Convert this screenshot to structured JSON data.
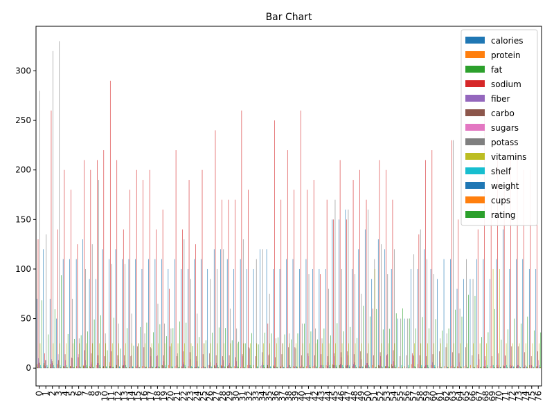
{
  "chart_data": {
    "type": "bar",
    "title": "Bar Chart",
    "xlabel": "",
    "ylabel": "",
    "ylim": [
      -18,
      345
    ],
    "yticks": [
      0,
      50,
      100,
      150,
      200,
      250,
      300
    ],
    "legend_position": "top-right",
    "grid": false,
    "categories": [
      "0",
      "1",
      "2",
      "3",
      "4",
      "5",
      "6",
      "7",
      "8",
      "9",
      "10",
      "11",
      "12",
      "13",
      "14",
      "15",
      "16",
      "17",
      "18",
      "19",
      "20",
      "21",
      "22",
      "23",
      "24",
      "25",
      "26",
      "27",
      "28",
      "29",
      "30",
      "31",
      "32",
      "33",
      "34",
      "35",
      "36",
      "37",
      "38",
      "39",
      "40",
      "41",
      "42",
      "43",
      "44",
      "45",
      "46",
      "47",
      "48",
      "49",
      "50",
      "51",
      "52",
      "53",
      "54",
      "55",
      "56",
      "57",
      "58",
      "59",
      "60",
      "61",
      "62",
      "63",
      "64",
      "65",
      "66",
      "67",
      "68",
      "69",
      "70",
      "71",
      "72",
      "73",
      "74",
      "75",
      "76"
    ],
    "series": [
      {
        "name": "calories",
        "color": "#1f77b4",
        "values": [
          70,
          120,
          70,
          50,
          110,
          110,
          110,
          130,
          90,
          90,
          120,
          110,
          120,
          110,
          110,
          110,
          100,
          110,
          110,
          110,
          100,
          110,
          100,
          100,
          110,
          110,
          100,
          120,
          120,
          110,
          100,
          110,
          100,
          100,
          120,
          120,
          100,
          100,
          110,
          110,
          100,
          110,
          100,
          100,
          100,
          150,
          150,
          160,
          100,
          120,
          140,
          90,
          130,
          120,
          100,
          50,
          50,
          100,
          100,
          120,
          100,
          90,
          110,
          110,
          80,
          90,
          90,
          110,
          110,
          90,
          110,
          140,
          100,
          110,
          110,
          100,
          100
        ]
      },
      {
        "name": "protein",
        "color": "#ff7f0e",
        "values": [
          4,
          3,
          4,
          4,
          2,
          2,
          2,
          3,
          2,
          3,
          1,
          6,
          1,
          3,
          1,
          2,
          2,
          1,
          1,
          3,
          3,
          2,
          2,
          2,
          1,
          1,
          3,
          3,
          3,
          2,
          2,
          1,
          3,
          3,
          2,
          1,
          3,
          2,
          1,
          2,
          2,
          2,
          2,
          1,
          3,
          4,
          3,
          3,
          2,
          2,
          3,
          3,
          3,
          2,
          4,
          1,
          2,
          4,
          4,
          2,
          3,
          2,
          2,
          2,
          2,
          2,
          3,
          3,
          2,
          2,
          3,
          3,
          3,
          2,
          1,
          3,
          2
        ]
      },
      {
        "name": "fat",
        "color": "#2ca02c",
        "values": [
          1,
          5,
          1,
          0,
          2,
          2,
          0,
          2,
          1,
          0,
          2,
          2,
          3,
          2,
          1,
          0,
          0,
          0,
          1,
          3,
          0,
          0,
          1,
          0,
          1,
          0,
          0,
          2,
          2,
          3,
          0,
          0,
          0,
          0,
          0,
          3,
          2,
          1,
          0,
          0,
          1,
          0,
          0,
          0,
          0,
          3,
          3,
          2,
          0,
          1,
          2,
          0,
          2,
          2,
          2,
          0,
          0,
          0,
          0,
          1,
          0,
          0,
          0,
          0,
          1,
          0,
          0,
          0,
          1,
          0,
          1,
          2,
          1,
          1,
          1,
          0,
          1
        ]
      },
      {
        "name": "sodium",
        "color": "#d62728",
        "values": [
          130,
          15,
          260,
          140,
          200,
          180,
          125,
          210,
          200,
          210,
          220,
          290,
          210,
          140,
          180,
          200,
          190,
          200,
          140,
          160,
          80,
          220,
          140,
          190,
          125,
          200,
          0,
          240,
          170,
          170,
          170,
          260,
          180,
          0,
          0,
          45,
          250,
          170,
          220,
          180,
          260,
          180,
          190,
          95,
          170,
          150,
          210,
          150,
          190,
          200,
          170,
          60,
          210,
          200,
          170,
          0,
          0,
          15,
          135,
          210,
          220,
          0,
          0,
          230,
          150,
          0,
          0,
          140,
          260,
          170,
          210,
          180,
          230,
          220,
          200,
          200,
          210
        ]
      },
      {
        "name": "fiber",
        "color": "#9467bd",
        "values": [
          10,
          2,
          9,
          14,
          1,
          1.5,
          1,
          2,
          4,
          5,
          0,
          2,
          0,
          3,
          0,
          1,
          0,
          1,
          2,
          2,
          0,
          0,
          4,
          0,
          1,
          0,
          3,
          1,
          2,
          1,
          1,
          0,
          1,
          0,
          3,
          1,
          1,
          0,
          1,
          1,
          0,
          0,
          0,
          3,
          2,
          3,
          4,
          3,
          4,
          1,
          5,
          0,
          3,
          2,
          2,
          1,
          1,
          0,
          1,
          3,
          6,
          0,
          0,
          0,
          0,
          0,
          0,
          1,
          2,
          0,
          1,
          2,
          2,
          3,
          1,
          0,
          2
        ]
      },
      {
        "name": "carbo",
        "color": "#8c564b",
        "values": [
          5,
          8,
          7,
          8,
          14,
          10.5,
          11,
          18,
          15,
          13,
          12,
          17,
          13,
          13,
          12,
          22,
          21,
          21,
          12,
          13,
          22,
          12,
          17,
          16,
          12,
          14,
          15,
          13,
          12,
          13,
          11,
          14,
          21,
          12,
          16,
          13,
          11,
          14,
          21,
          21,
          13,
          15,
          13,
          14,
          12,
          15,
          16,
          17,
          14,
          17,
          15,
          13,
          16,
          13,
          18,
          12,
          13,
          13,
          13,
          12,
          14,
          17,
          21,
          16,
          15,
          21,
          13,
          14,
          12,
          12,
          15,
          13,
          22,
          22,
          16,
          12,
          17
        ]
      },
      {
        "name": "sugars",
        "color": "#e377c2",
        "values": [
          6,
          8,
          5,
          0,
          8,
          10,
          14,
          8,
          6,
          5,
          12,
          1,
          9,
          7,
          13,
          3,
          2,
          12,
          13,
          7,
          0,
          3,
          6,
          9,
          7,
          2,
          6,
          5,
          8,
          5,
          7,
          12,
          3,
          12,
          6,
          14,
          2,
          3,
          3,
          2,
          3,
          12,
          3,
          3,
          6,
          12,
          11,
          13,
          6,
          9,
          5,
          0,
          12,
          14,
          7,
          0,
          0,
          12,
          8,
          3,
          3,
          5,
          2,
          3,
          6,
          3,
          0,
          9,
          8,
          3,
          3,
          12,
          3,
          3,
          3,
          3,
          8
        ]
      },
      {
        "name": "potass",
        "color": "#7f7f7f",
        "values": [
          280,
          135,
          320,
          330,
          1,
          70,
          30,
          100,
          125,
          190,
          35,
          105,
          45,
          105,
          55,
          25,
          35,
          20,
          65,
          45,
          40,
          15,
          130,
          90,
          55,
          25,
          90,
          100,
          120,
          60,
          40,
          130,
          20,
          110,
          120,
          75,
          30,
          25,
          35,
          20,
          45,
          95,
          40,
          30,
          80,
          170,
          100,
          160,
          95,
          75,
          160,
          110,
          125,
          95,
          120,
          50,
          50,
          115,
          140,
          110,
          95,
          30,
          35,
          230,
          60,
          110,
          90,
          0,
          1,
          0,
          0,
          0,
          0,
          0,
          0,
          0,
          0
        ]
      },
      {
        "name": "vitamins",
        "color": "#bcbd22",
        "values": [
          25,
          0,
          25,
          25,
          25,
          25,
          25,
          25,
          25,
          25,
          25,
          25,
          25,
          25,
          25,
          25,
          25,
          25,
          25,
          25,
          25,
          25,
          25,
          25,
          25,
          25,
          25,
          25,
          25,
          25,
          25,
          25,
          25,
          25,
          25,
          25,
          25,
          25,
          25,
          25,
          25,
          25,
          25,
          25,
          25,
          25,
          25,
          25,
          25,
          25,
          25,
          100,
          25,
          25,
          25,
          0,
          0,
          25,
          25,
          25,
          25,
          25,
          25,
          25,
          25,
          25,
          25,
          25,
          25,
          100,
          100,
          25,
          25,
          25,
          25,
          25,
          25
        ]
      },
      {
        "name": "shelf",
        "color": "#17becf",
        "values": [
          3,
          3,
          3,
          3,
          3,
          1,
          2,
          3,
          1,
          3,
          2,
          1,
          2,
          3,
          2,
          1,
          1,
          2,
          2,
          3,
          2,
          1,
          3,
          2,
          2,
          1,
          2,
          3,
          2,
          2,
          2,
          1,
          3,
          2,
          3,
          2,
          1,
          1,
          3,
          2,
          1,
          3,
          2,
          3,
          3,
          3,
          3,
          3,
          3,
          2,
          3,
          1,
          2,
          2,
          3,
          3,
          3,
          2,
          3,
          3,
          3,
          1,
          1,
          1,
          2,
          1,
          1,
          1,
          3,
          3,
          1,
          3,
          2,
          2,
          2,
          2,
          3
        ]
      },
      {
        "name": "weight",
        "color": "#1f77b4",
        "values": [
          1,
          1,
          1,
          1,
          1,
          1,
          1,
          1.33,
          1,
          1,
          1,
          1,
          1,
          1,
          1,
          1,
          1,
          1,
          1,
          1,
          1,
          1,
          1,
          1,
          1,
          1,
          1,
          1,
          1,
          1,
          1,
          1,
          1,
          1,
          1,
          1,
          1,
          1,
          1,
          1,
          1,
          1,
          1,
          1,
          1,
          1.5,
          1,
          1.5,
          1,
          1,
          1.3,
          1,
          1,
          1,
          1,
          0.5,
          0.5,
          1,
          1,
          1,
          1,
          1,
          1,
          1,
          1,
          1,
          1,
          1,
          1,
          1,
          1,
          1,
          1,
          1,
          1,
          1,
          1
        ]
      },
      {
        "name": "cups",
        "color": "#ff7f0e",
        "values": [
          0.33,
          1,
          0.33,
          0.5,
          0.75,
          0.75,
          1,
          0.75,
          0.67,
          0.67,
          0.75,
          1.25,
          0.75,
          0.75,
          1,
          1,
          1.33,
          1,
          0.75,
          0.5,
          0.5,
          1,
          0.5,
          0.75,
          1,
          1,
          0.67,
          0.75,
          0.67,
          1,
          1,
          0.75,
          0.88,
          1,
          0.67,
          0.5,
          1,
          0.75,
          1,
          1,
          1.5,
          0.75,
          0.5,
          0.5,
          0.67,
          0.67,
          0.67,
          0.5,
          0.75,
          1,
          0.5,
          1,
          0.5,
          1,
          1,
          1,
          1,
          0.75,
          1,
          0.33,
          0.75,
          1,
          1,
          1,
          1,
          1,
          1,
          1,
          0.75,
          1,
          1,
          0.5,
          1.33,
          0.75,
          1,
          0.67,
          0.75
        ]
      },
      {
        "name": "rating",
        "color": "#2ca02c",
        "values": [
          68.4,
          34,
          59.4,
          93.7,
          34.4,
          29.5,
          33.2,
          37,
          49.1,
          53.3,
          18.0,
          50.8,
          19.8,
          40.4,
          22.7,
          41.4,
          45.9,
          36.2,
          44.3,
          32.2,
          40.4,
          47.1,
          45.8,
          22.4,
          31.4,
          28.0,
          35.8,
          41.0,
          40.5,
          28.0,
          26.7,
          25.0,
          35.3,
          24.0,
          35.8,
          35.0,
          31.0,
          34.0,
          29.0,
          35.0,
          45.0,
          37.0,
          29.0,
          40.0,
          33.0,
          45.3,
          37.1,
          41.5,
          30.3,
          63.0,
          52.1,
          59.6,
          39.0,
          39.7,
          55.3,
          60.3,
          50.1,
          40.1,
          51.6,
          40.2,
          49.5,
          37.9,
          40.0,
          59.0,
          52.0,
          74.0,
          72.8,
          31.4,
          36.2,
          59.6,
          28.7,
          39.1,
          50.0,
          45.0,
          52.0,
          38.0,
          36.0
        ]
      }
    ]
  }
}
